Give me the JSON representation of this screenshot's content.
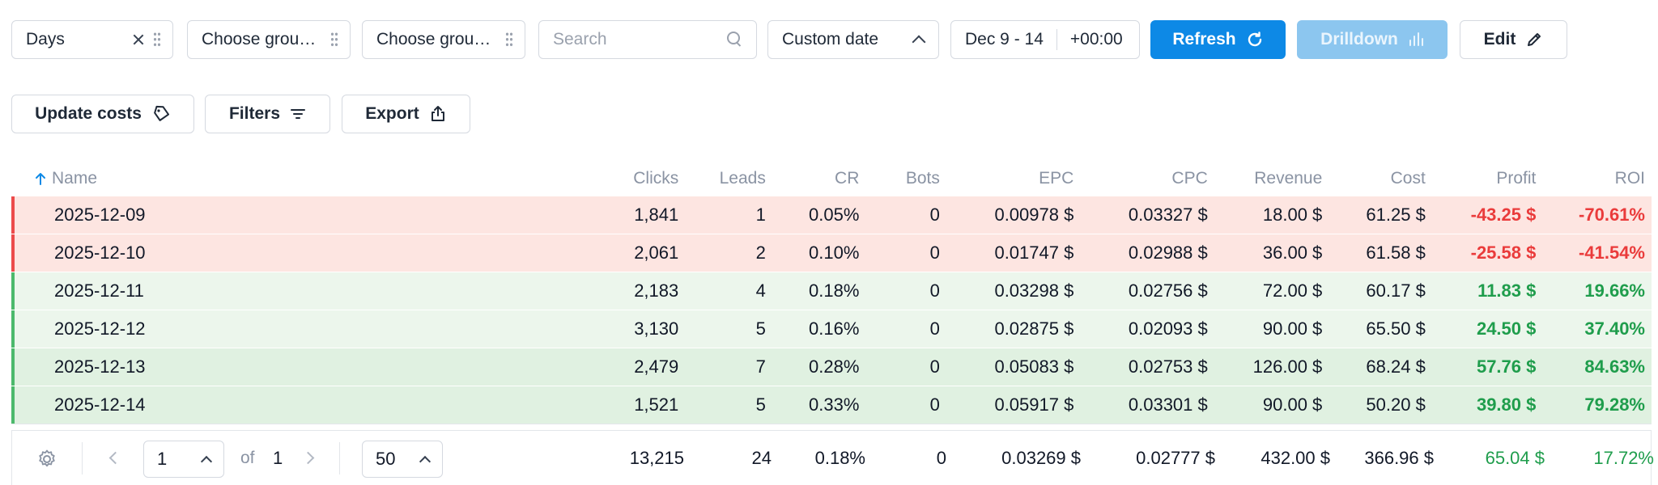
{
  "toolbar": {
    "group1": "Days",
    "group2": "Choose grou…",
    "group3": "Choose grou…",
    "search_placeholder": "Search",
    "date_mode": "Custom date",
    "date_range": "Dec 9 - 14",
    "timezone": "+00:00",
    "refresh_label": "Refresh",
    "drilldown_label": "Drilldown",
    "edit_label": "Edit"
  },
  "actions": {
    "update_costs_label": "Update costs",
    "filters_label": "Filters",
    "export_label": "Export"
  },
  "table": {
    "columns": [
      "Name",
      "Clicks",
      "Leads",
      "CR",
      "Bots",
      "EPC",
      "CPC",
      "Revenue",
      "Cost",
      "Profit",
      "ROI"
    ],
    "rows": [
      {
        "name": "2025-12-09",
        "clicks": "1,841",
        "leads": "1",
        "cr": "0.05%",
        "bots": "0",
        "epc": "0.00978 $",
        "cpc": "0.03327 $",
        "revenue": "18.00 $",
        "cost": "61.25 $",
        "profit": "-43.25 $",
        "roi": "-70.61%"
      },
      {
        "name": "2025-12-10",
        "clicks": "2,061",
        "leads": "2",
        "cr": "0.10%",
        "bots": "0",
        "epc": "0.01747 $",
        "cpc": "0.02988 $",
        "revenue": "36.00 $",
        "cost": "61.58 $",
        "profit": "-25.58 $",
        "roi": "-41.54%"
      },
      {
        "name": "2025-12-11",
        "clicks": "2,183",
        "leads": "4",
        "cr": "0.18%",
        "bots": "0",
        "epc": "0.03298 $",
        "cpc": "0.02756 $",
        "revenue": "72.00 $",
        "cost": "60.17 $",
        "profit": "11.83 $",
        "roi": "19.66%"
      },
      {
        "name": "2025-12-12",
        "clicks": "3,130",
        "leads": "5",
        "cr": "0.16%",
        "bots": "0",
        "epc": "0.02875 $",
        "cpc": "0.02093 $",
        "revenue": "90.00 $",
        "cost": "65.50 $",
        "profit": "24.50 $",
        "roi": "37.40%"
      },
      {
        "name": "2025-12-13",
        "clicks": "2,479",
        "leads": "7",
        "cr": "0.28%",
        "bots": "0",
        "epc": "0.05083 $",
        "cpc": "0.02753 $",
        "revenue": "126.00 $",
        "cost": "68.24 $",
        "profit": "57.76 $",
        "roi": "84.63%"
      },
      {
        "name": "2025-12-14",
        "clicks": "1,521",
        "leads": "5",
        "cr": "0.33%",
        "bots": "0",
        "epc": "0.05917 $",
        "cpc": "0.03301 $",
        "revenue": "90.00 $",
        "cost": "50.20 $",
        "profit": "39.80 $",
        "roi": "79.28%"
      }
    ],
    "totals": {
      "clicks": "13,215",
      "leads": "24",
      "cr": "0.18%",
      "bots": "0",
      "epc": "0.03269 $",
      "cpc": "0.02777 $",
      "revenue": "432.00 $",
      "cost": "366.96 $",
      "profit": "65.04 $",
      "roi": "17.72%"
    }
  },
  "pagination": {
    "page": "1",
    "of_label": "of",
    "total_pages": "1",
    "per_page": "50"
  },
  "colors": {
    "primary": "#0d89e6",
    "loss_row": "#fde5e1",
    "gain_row": "#e0f1e1",
    "negative_text": "#ea3b3b",
    "positive_text": "#1f9d4c"
  }
}
